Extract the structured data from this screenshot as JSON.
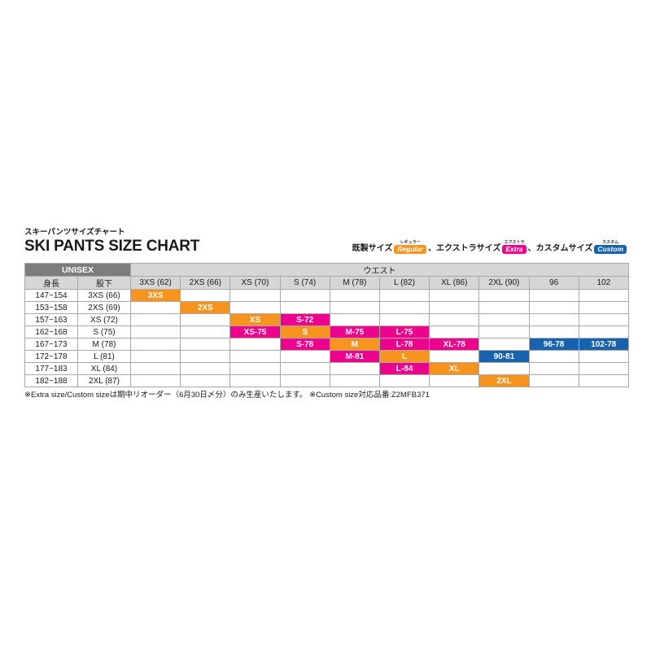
{
  "page": {
    "subtitle_jp": "スキーパンツサイズチャート",
    "title": "SKI PANTS SIZE CHART"
  },
  "legend": {
    "separator": "、",
    "items": [
      {
        "label": "既製サイズ",
        "badge": "Regular",
        "badge_kana": "レギュラー",
        "type": "regular"
      },
      {
        "label": "エクストラサイズ",
        "badge": "Extra",
        "badge_kana": "エクストラ",
        "type": "extra"
      },
      {
        "label": "カスタムサイズ",
        "badge": "Custom",
        "badge_kana": "カスタム",
        "type": "custom"
      }
    ]
  },
  "colors": {
    "regular": "#f7941e",
    "extra": "#ec008c",
    "custom": "#1763ad",
    "header_dark": "#7d7d7d",
    "header_light": "#d6d6d6"
  },
  "chart_data": {
    "type": "table",
    "title": "SKI PANTS SIZE CHART",
    "group_headers": {
      "unisex": "UNISEX",
      "waist": "ウエスト"
    },
    "columns": [
      "身長",
      "股下",
      "3XS (62)",
      "2XS (66)",
      "XS (70)",
      "S (74)",
      "M (78)",
      "L (82)",
      "XL (86)",
      "2XL (90)",
      "96",
      "102"
    ],
    "rows": [
      {
        "height": "147~154",
        "inseam": "3XS (66)",
        "cells": [
          {
            "col": 2,
            "label": "3XS",
            "type": "regular"
          }
        ]
      },
      {
        "height": "153~158",
        "inseam": "2XS (69)",
        "cells": [
          {
            "col": 3,
            "label": "2XS",
            "type": "regular"
          }
        ]
      },
      {
        "height": "157~163",
        "inseam": "XS (72)",
        "cells": [
          {
            "col": 4,
            "label": "XS",
            "type": "regular"
          },
          {
            "col": 5,
            "label": "S-72",
            "type": "extra"
          }
        ]
      },
      {
        "height": "162~168",
        "inseam": "S (75)",
        "cells": [
          {
            "col": 4,
            "label": "XS-75",
            "type": "extra"
          },
          {
            "col": 5,
            "label": "S",
            "type": "regular"
          },
          {
            "col": 6,
            "label": "M-75",
            "type": "extra"
          },
          {
            "col": 7,
            "label": "L-75",
            "type": "extra"
          }
        ]
      },
      {
        "height": "167~173",
        "inseam": "M (78)",
        "cells": [
          {
            "col": 5,
            "label": "S-78",
            "type": "extra"
          },
          {
            "col": 6,
            "label": "M",
            "type": "regular"
          },
          {
            "col": 7,
            "label": "L-78",
            "type": "extra"
          },
          {
            "col": 8,
            "label": "XL-78",
            "type": "extra"
          },
          {
            "col": 10,
            "label": "96-78",
            "type": "custom"
          },
          {
            "col": 11,
            "label": "102-78",
            "type": "custom"
          }
        ]
      },
      {
        "height": "172~178",
        "inseam": "L (81)",
        "cells": [
          {
            "col": 6,
            "label": "M-81",
            "type": "extra"
          },
          {
            "col": 7,
            "label": "L",
            "type": "regular"
          },
          {
            "col": 9,
            "label": "90-81",
            "type": "custom"
          }
        ]
      },
      {
        "height": "177~183",
        "inseam": "XL (84)",
        "cells": [
          {
            "col": 7,
            "label": "L-84",
            "type": "extra"
          },
          {
            "col": 8,
            "label": "XL",
            "type": "regular"
          }
        ]
      },
      {
        "height": "182~188",
        "inseam": "2XL (87)",
        "cells": [
          {
            "col": 9,
            "label": "2XL",
            "type": "regular"
          }
        ]
      }
    ]
  },
  "footnote": "※Extra size/Custom sizeは期中リオーダー（6月30日〆分）のみ生産いたします。 ※Custom size対応品番:Z2MFB371"
}
